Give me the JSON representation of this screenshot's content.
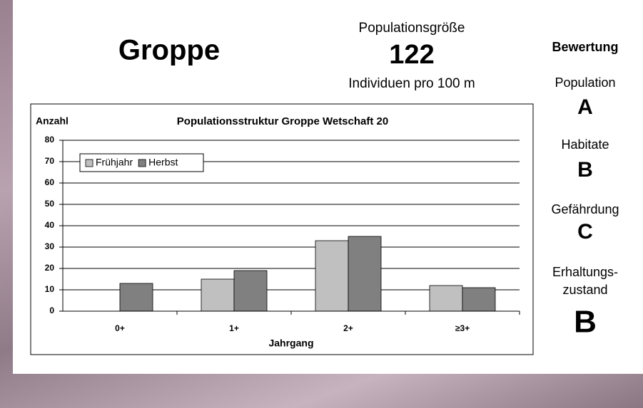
{
  "header": {
    "species": "Groppe",
    "size_label": "Populationsgröße",
    "size_value": "122",
    "size_unit": "Individuen pro 100 m"
  },
  "rating": {
    "title": "Bewertung",
    "items": [
      {
        "label": [
          "Population"
        ],
        "grade": "A"
      },
      {
        "label": [
          "Habitate"
        ],
        "grade": "B"
      },
      {
        "label": [
          "Gefährdung"
        ],
        "grade": "C"
      },
      {
        "label": [
          "Erhaltungs-",
          "zustand"
        ],
        "grade": "B"
      }
    ]
  },
  "chart_data": {
    "type": "bar",
    "title": "Populationsstruktur Groppe Wetschaft 20",
    "y_label": "Anzahl",
    "x_label": "Jahrgang",
    "categories": [
      "0+",
      "1+",
      "2+",
      "≥3+"
    ],
    "series": [
      {
        "name": "Frühjahr",
        "color": "#c0c0c0",
        "values": [
          null,
          15,
          33,
          12
        ]
      },
      {
        "name": "Herbst",
        "color": "#808080",
        "values": [
          13,
          19,
          35,
          11
        ]
      }
    ],
    "ylim": [
      0,
      80
    ],
    "yticks": [
      0,
      10,
      20,
      30,
      40,
      50,
      60,
      70,
      80
    ],
    "grid": true,
    "legend": "top-left"
  }
}
